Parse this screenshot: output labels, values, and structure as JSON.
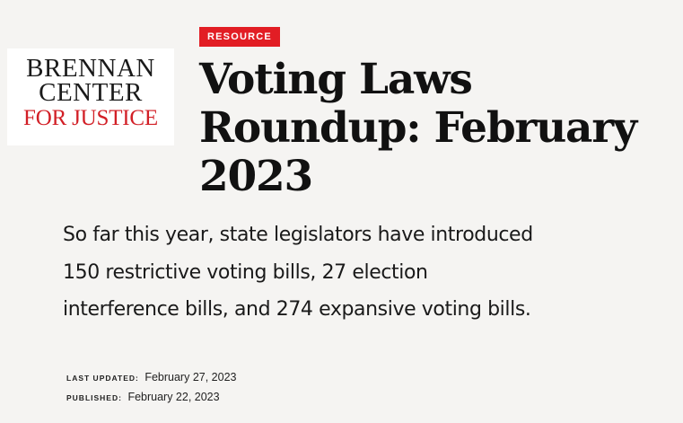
{
  "logo": {
    "line1": "BRENNAN",
    "line2": "CENTER",
    "line3": "FOR JUSTICE"
  },
  "badge": {
    "label": "RESOURCE",
    "color": "#e21d24"
  },
  "article": {
    "title": "Voting Laws Roundup: February 2023",
    "summary": "So far this year, state legislators have introduced 150 restrictive voting bills, 27 election interference bills, and 274 expansive voting bills.",
    "last_updated_label": "LAST UPDATED:",
    "last_updated_value": "February 27, 2023",
    "published_label": "PUBLISHED:",
    "published_value": "February 22, 2023"
  }
}
